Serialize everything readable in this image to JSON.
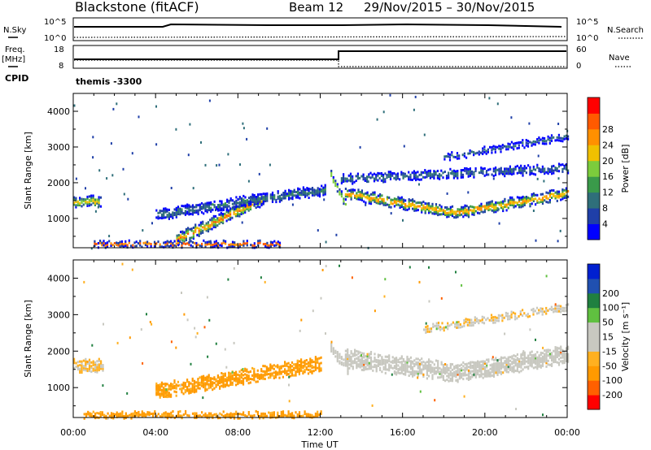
{
  "header": {
    "site": "Blackstone (fitACF)",
    "beam": "Beam 12",
    "dates": "29/Nov/2015 – 30/Nov/2015"
  },
  "panels": {
    "nsky_label": "N.Sky",
    "nsky_top": "10^5",
    "nsky_bottom": "10^0",
    "nsearch_label": "N.Search",
    "nsearch_top": "10^5",
    "nsearch_bottom": "10^0",
    "freq_label": "Freq.",
    "freq_unit": "[MHz]",
    "freq_top": "18",
    "freq_bottom": "8",
    "nave_label": "Nave",
    "nave_top": "60",
    "nave_bottom": "0",
    "cpid_label": "CPID",
    "cpid_value": "themis -3300"
  },
  "colors": {
    "power": [
      "#0000ff",
      "#1f3fa8",
      "#2f6f7a",
      "#3a9a4a",
      "#7ccc3c",
      "#f0c000",
      "#ff9000",
      "#ff5a00",
      "#ff0000"
    ],
    "velocity": [
      "#ff0000",
      "#ff6000",
      "#ff9a00",
      "#ffb020",
      "#c8c8c0",
      "#c8c8c0",
      "#60c040",
      "#208040",
      "#2050b0",
      "#0020d0"
    ]
  },
  "chart_data": [
    {
      "type": "heatmap",
      "title": "",
      "xlabel": "Time UT",
      "ylabel": "Slant Range [km]",
      "xlim": [
        "00:00",
        "24:00"
      ],
      "ylim": [
        180,
        4500
      ],
      "x_ticks": [
        "00:00",
        "04:00",
        "08:00",
        "12:00",
        "16:00",
        "20:00",
        "00:00"
      ],
      "y_ticks": [
        1000,
        2000,
        3000,
        4000
      ],
      "colorbar_label": "Power [dB]",
      "colorbar_ticks": [
        4,
        8,
        12,
        16,
        20,
        24,
        28
      ],
      "bands": [
        {
          "t": [
            0.0,
            1.3
          ],
          "range_center": [
            1450,
            1500
          ],
          "width": 250,
          "peak_db": 24
        },
        {
          "t": [
            5.0,
            9.2
          ],
          "range_center": [
            400,
            1550
          ],
          "width": 300,
          "peak_db": 28
        },
        {
          "t": [
            4.0,
            12.2
          ],
          "range_center": [
            1100,
            1800
          ],
          "width": 250,
          "peak_db": 12
        },
        {
          "t": [
            12.5,
            13.2
          ],
          "range_center": [
            2200,
            1400
          ],
          "width": 200,
          "peak_db": 24
        },
        {
          "t": [
            13.2,
            24.0
          ],
          "range_center": [
            1700,
            1150,
            1700
          ],
          "width": 260,
          "peak_db": 28
        },
        {
          "t": [
            13.0,
            24.0
          ],
          "range_center": [
            2100,
            2400
          ],
          "width": 200,
          "peak_db": 12
        },
        {
          "t": [
            18.0,
            24.0
          ],
          "range_center": [
            2700,
            3300
          ],
          "width": 150,
          "peak_db": 8
        },
        {
          "t": [
            1.0,
            10.0
          ],
          "range_center": [
            280,
            280
          ],
          "width": 120,
          "peak_db": 28
        }
      ]
    },
    {
      "type": "heatmap",
      "title": "",
      "xlabel": "Time UT",
      "ylabel": "Slant Range [km]",
      "xlim": [
        "00:00",
        "24:00"
      ],
      "ylim": [
        180,
        4500
      ],
      "x_ticks": [
        "00:00",
        "04:00",
        "08:00",
        "12:00",
        "16:00",
        "20:00",
        "00:00"
      ],
      "y_ticks": [
        1000,
        2000,
        3000,
        4000
      ],
      "colorbar_label": "Velocity [m s⁻¹]",
      "colorbar_ticks": [
        -200,
        -100,
        -50,
        -15,
        15,
        50,
        100,
        200
      ],
      "bands": [
        {
          "t": [
            0.0,
            1.4
          ],
          "range_center": [
            1600,
            1600
          ],
          "width": 300,
          "vel": -15
        },
        {
          "t": [
            4.0,
            12.0
          ],
          "range_center": [
            900,
            1650
          ],
          "width": 350,
          "vel": -60
        },
        {
          "t": [
            12.5,
            13.3
          ],
          "range_center": [
            2100,
            1500
          ],
          "width": 300,
          "vel": 30
        },
        {
          "t": [
            13.2,
            24.0
          ],
          "range_center": [
            1800,
            1400,
            1900
          ],
          "width": 450,
          "vel": 0
        },
        {
          "t": [
            17.0,
            24.0
          ],
          "range_center": [
            2600,
            3200
          ],
          "width": 150,
          "vel": -10
        },
        {
          "t": [
            0.5,
            12.0
          ],
          "range_center": [
            250,
            250
          ],
          "width": 120,
          "vel": -60
        }
      ]
    }
  ]
}
